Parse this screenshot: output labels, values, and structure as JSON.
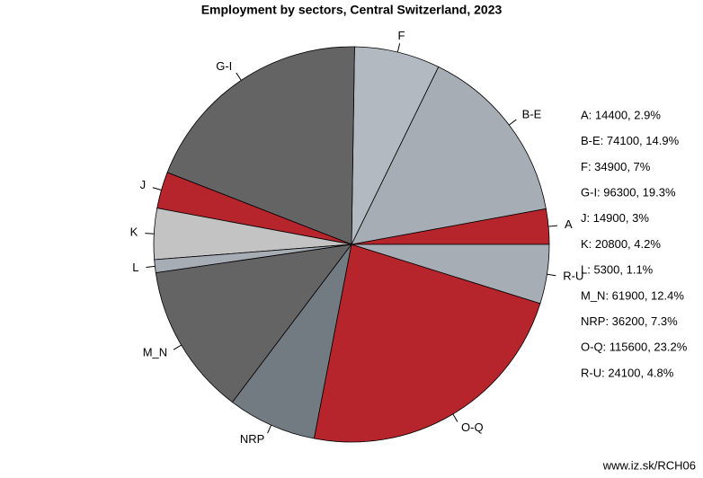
{
  "chart_data": {
    "type": "pie",
    "title": "Employment by sectors, Central Switzerland, 2023",
    "categories": [
      "A",
      "B-E",
      "F",
      "G-I",
      "J",
      "K",
      "L",
      "M_N",
      "NRP",
      "O-Q",
      "R-U"
    ],
    "values": [
      14400,
      74100,
      34900,
      96300,
      14900,
      20800,
      5300,
      61900,
      36200,
      115600,
      24100
    ],
    "colors": [
      "#b5252b",
      "#a6adb5",
      "#b2b9c1",
      "#646464",
      "#b5252b",
      "#c3c3c3",
      "#a6adb5",
      "#646464",
      "#737b82",
      "#b5252b",
      "#a6adb5"
    ],
    "legend": [
      "A: 14400, 2.9%",
      "B-E: 74100, 14.9%",
      "F: 34900, 7%",
      "G-I: 96300, 19.3%",
      "J: 14900, 3%",
      "K: 20800, 4.2%",
      "L: 5300, 1.1%",
      "M_N: 61900, 12.4%",
      "NRP: 36200, 7.3%",
      "O-Q: 115600, 23.2%",
      "R-U: 24100, 4.8%"
    ],
    "source": "www.iz.sk/RCH06"
  }
}
